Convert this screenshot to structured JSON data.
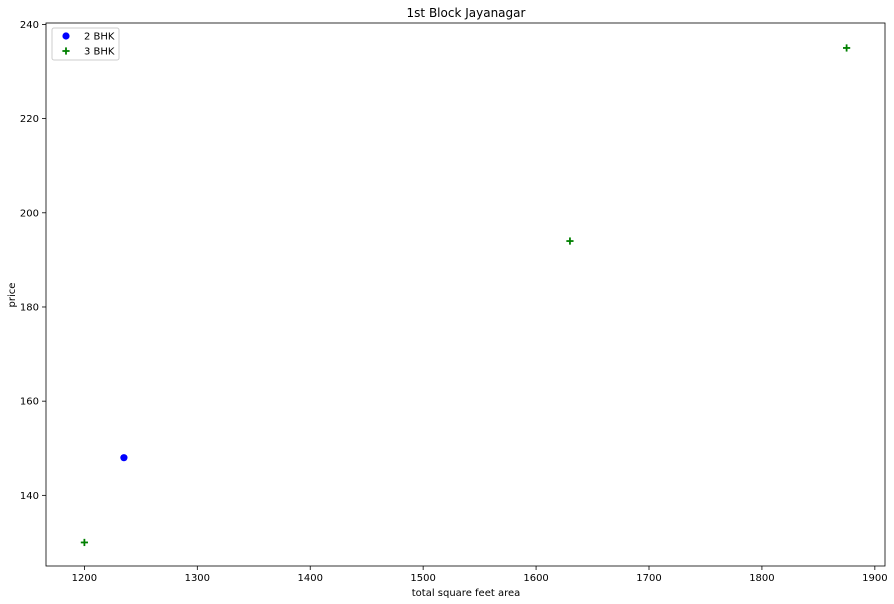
{
  "chart_data": {
    "type": "scatter",
    "title": "1st Block Jayanagar",
    "xlabel": "total square feet area",
    "ylabel": "price",
    "xlim": [
      1166,
      1909
    ],
    "ylim": [
      125,
      240.3
    ],
    "xticks": [
      1200,
      1300,
      1400,
      1500,
      1600,
      1700,
      1800,
      1900
    ],
    "yticks": [
      140,
      160,
      180,
      200,
      220,
      240
    ],
    "grid": false,
    "legend_position": "top-left",
    "series": [
      {
        "name": "2 BHK",
        "marker": "circle",
        "color": "#0000ff",
        "points": [
          {
            "x": 1235,
            "y": 148
          }
        ]
      },
      {
        "name": "3 BHK",
        "marker": "plus",
        "color": "#008000",
        "points": [
          {
            "x": 1200,
            "y": 130
          },
          {
            "x": 1630,
            "y": 194
          },
          {
            "x": 1875,
            "y": 235
          }
        ]
      }
    ]
  }
}
